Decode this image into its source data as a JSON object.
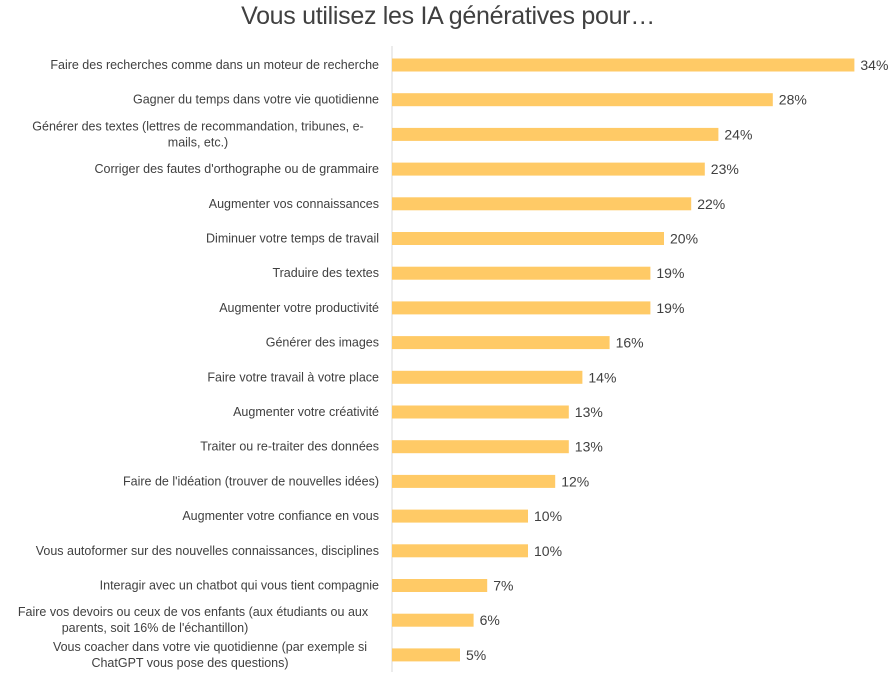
{
  "chart_data": {
    "type": "bar",
    "orientation": "horizontal",
    "title": "Vous utilisez les IA génératives pour…",
    "xlabel": "",
    "ylabel": "",
    "xlim": [
      0,
      34
    ],
    "grid": false,
    "bar_color": "#FFCA66",
    "value_suffix": "%",
    "categories": [
      "Faire des recherches comme dans un moteur de recherche",
      "Gagner du temps dans votre vie quotidienne",
      "Générer des textes (lettres de recommandation, tribunes, e-|mails, etc.)",
      "Corriger des fautes d'orthographe ou de grammaire",
      "Augmenter vos connaissances",
      "Diminuer votre temps de travail",
      "Traduire des textes",
      "Augmenter votre productivité",
      "Générer des images",
      "Faire votre travail à votre place",
      "Augmenter votre créativité",
      "Traiter ou re-traiter des données",
      "Faire de l'idéation (trouver de nouvelles idées)",
      "Augmenter votre confiance en vous",
      "Vous autoformer sur des nouvelles connaissances, disciplines",
      "Interagir avec un chatbot qui vous tient compagnie",
      "Faire vos devoirs ou ceux de vos enfants (aux étudiants ou aux|parents, soit 16% de l'échantillon)",
      "Vous coacher dans votre vie quotidienne (par exemple si|ChatGPT vous pose des questions)"
    ],
    "values": [
      34,
      28,
      24,
      23,
      22,
      20,
      19,
      19,
      16,
      14,
      13,
      13,
      12,
      10,
      10,
      7,
      6,
      5
    ]
  }
}
